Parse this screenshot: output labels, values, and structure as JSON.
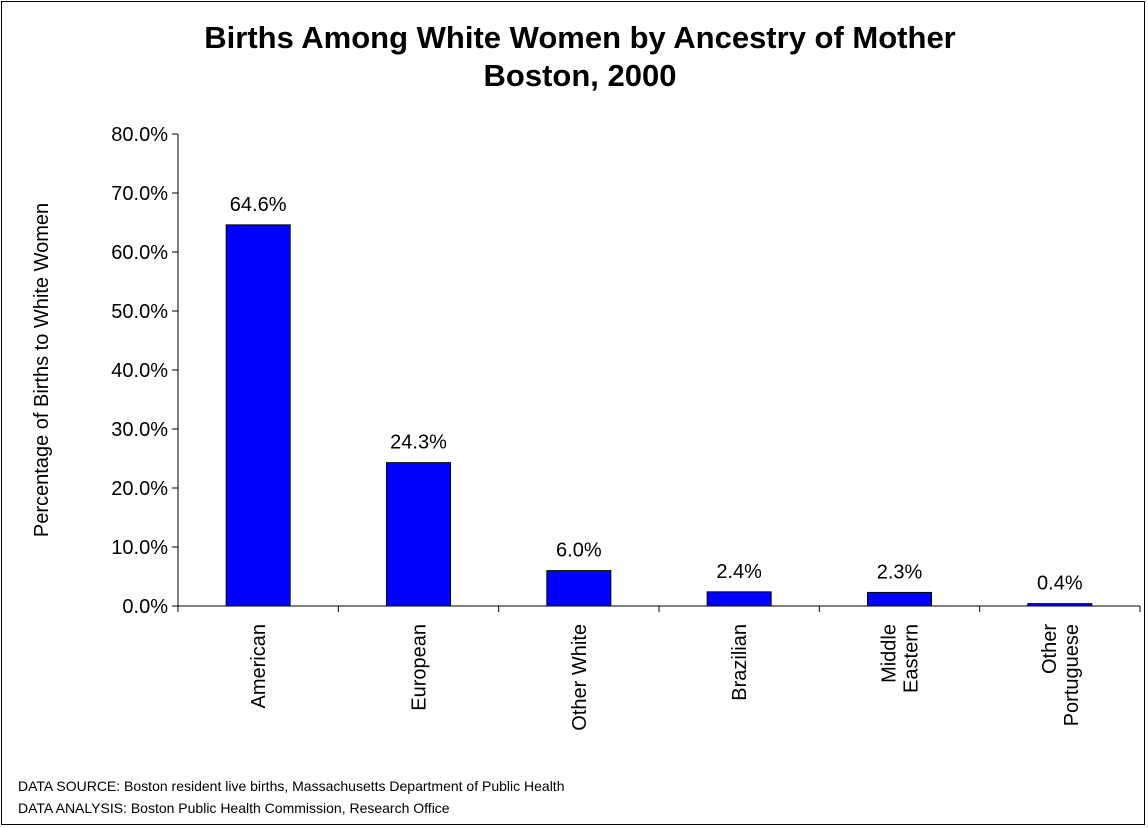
{
  "chart_data": {
    "type": "bar",
    "title_lines": [
      "Births Among White Women by Ancestry of Mother",
      "Boston, 2000"
    ],
    "ylabel": "Percentage of Births to White Women",
    "xlabel": "",
    "categories": [
      [
        "American"
      ],
      [
        "European"
      ],
      [
        "Other White"
      ],
      [
        "Brazilian"
      ],
      [
        "Middle",
        "Eastern"
      ],
      [
        "Other",
        "Portuguese"
      ]
    ],
    "values": [
      64.6,
      24.3,
      6.0,
      2.4,
      2.3,
      0.4
    ],
    "value_labels": [
      "64.6%",
      "24.3%",
      "6.0%",
      "2.4%",
      "2.3%",
      "0.4%"
    ],
    "ylim": [
      0,
      80
    ],
    "yticks": [
      "0.0%",
      "10.0%",
      "20.0%",
      "30.0%",
      "40.0%",
      "50.0%",
      "60.0%",
      "70.0%",
      "80.0%"
    ],
    "bar_color": "#0000FF",
    "grid": false,
    "legend": "none"
  },
  "footnotes": {
    "source": "DATA SOURCE:  Boston resident live births, Massachusetts Department of Public Health",
    "analysis": "DATA ANALYSIS:  Boston Public Health Commission, Research Office"
  }
}
